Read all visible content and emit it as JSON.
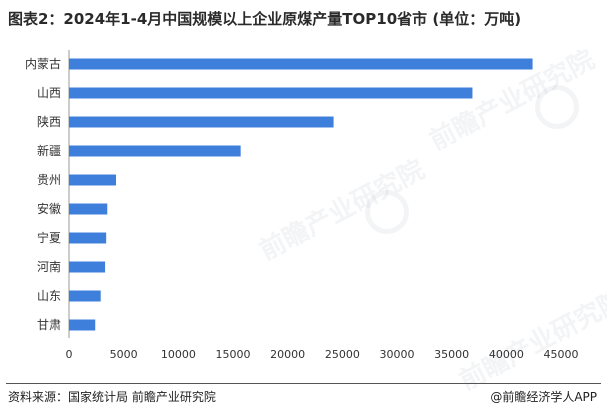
{
  "title": "图表2：2024年1-4月中国规模以上企业原煤产量TOP10省市 (单位：万吨)",
  "footer": {
    "source": "资料来源：国家统计局 前瞻产业研究院",
    "brand": "@前瞻经济学人APP"
  },
  "watermark_text": "前瞻产业研究院",
  "colors": {
    "bar": "#3f7fdc",
    "axis": "#999999",
    "text": "#333333"
  },
  "chart_data": {
    "type": "bar",
    "orientation": "horizontal",
    "categories": [
      "内蒙古",
      "山西",
      "陕西",
      "新疆",
      "贵州",
      "安徽",
      "宁夏",
      "河南",
      "山东",
      "甘肃"
    ],
    "values": [
      42400,
      36900,
      24200,
      15700,
      4300,
      3500,
      3400,
      3300,
      2900,
      2400
    ],
    "xlim": [
      0,
      45000
    ],
    "xticks": [
      0,
      5000,
      10000,
      15000,
      20000,
      25000,
      30000,
      35000,
      40000,
      45000
    ],
    "grid": false
  }
}
